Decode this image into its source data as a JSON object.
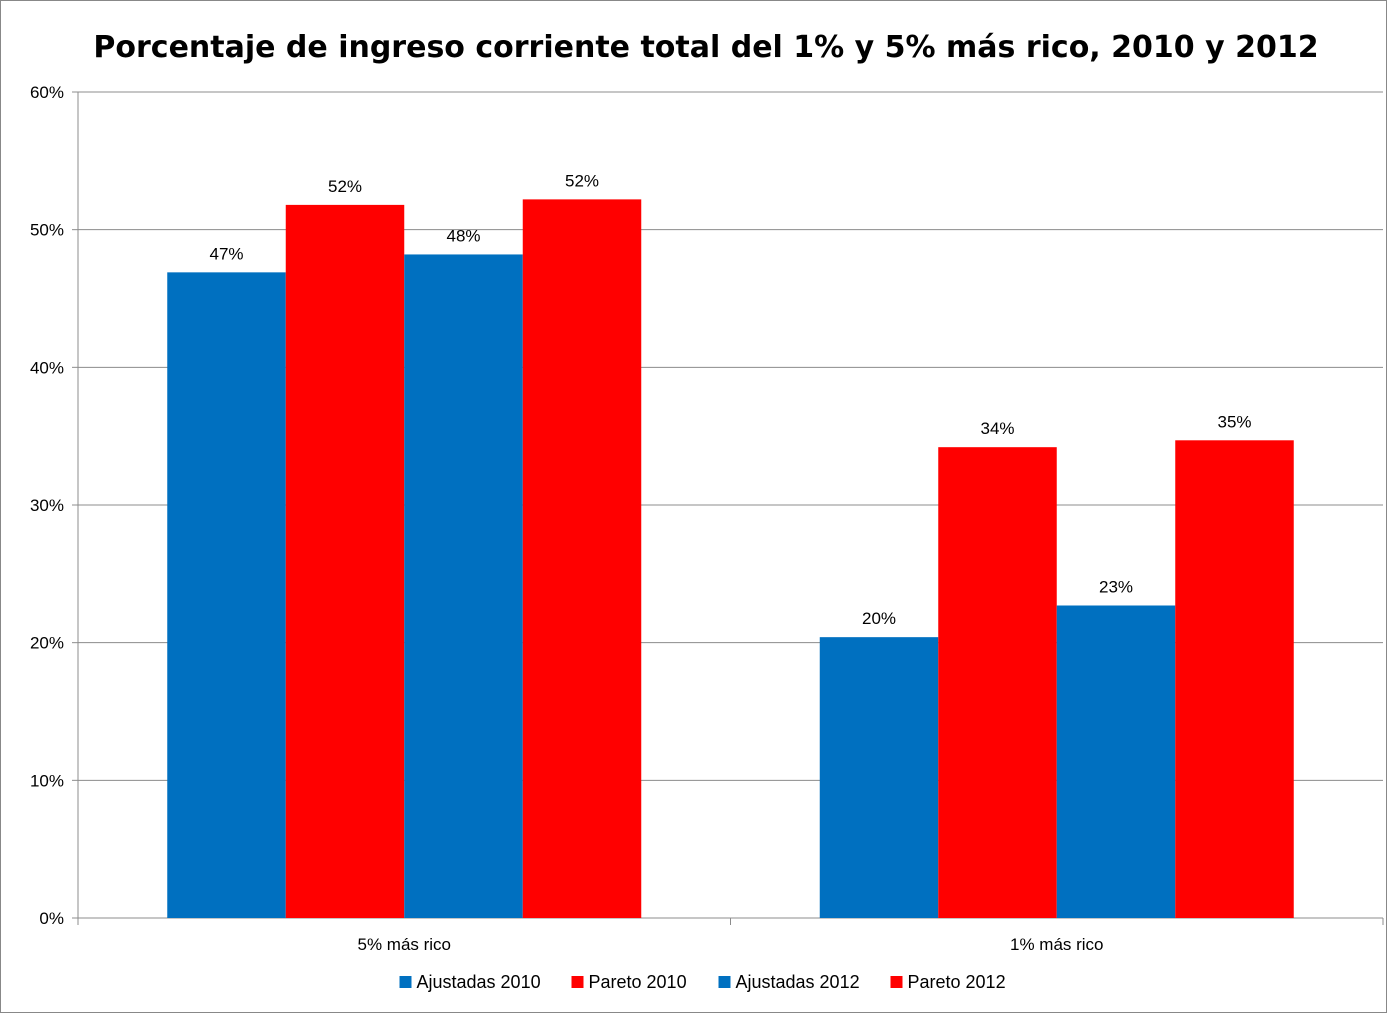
{
  "chart_data": {
    "type": "bar",
    "title": "Porcentaje de ingreso corriente total del 1% y 5% más rico, 2010 y 2012",
    "categories": [
      "5% más rico",
      "1% más rico"
    ],
    "series": [
      {
        "name": "Ajustadas 2010",
        "color": "#0070C0",
        "values": [
          46.9,
          20.4
        ],
        "labels": [
          "47%",
          "20%"
        ]
      },
      {
        "name": "Pareto 2010",
        "color": "#FF0000",
        "values": [
          51.8,
          34.2
        ],
        "labels": [
          "52%",
          "34%"
        ]
      },
      {
        "name": "Ajustadas 2012",
        "color": "#0070C0",
        "values": [
          48.2,
          22.7
        ],
        "labels": [
          "48%",
          "23%"
        ]
      },
      {
        "name": "Pareto 2012",
        "color": "#FF0000",
        "values": [
          52.2,
          34.7
        ],
        "labels": [
          "52%",
          "35%"
        ]
      }
    ],
    "yticks": [
      "0%",
      "10%",
      "20%",
      "30%",
      "40%",
      "50%",
      "60%"
    ],
    "ylim": [
      0,
      60
    ],
    "grid": true,
    "legend": "bottom"
  }
}
